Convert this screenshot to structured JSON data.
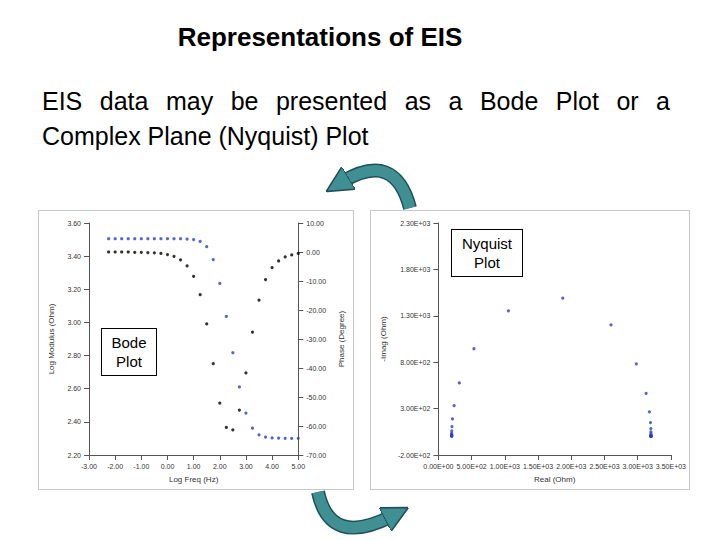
{
  "slide": {
    "title": "Representations of EIS",
    "text": "EIS data may be presented as a Bode Plot or a Complex Plane (Nyquist) Plot"
  },
  "chart_data": [
    {
      "type": "scatter",
      "annotation": "Bode Plot",
      "x_label": "Log Freq (Hz)",
      "y_label": "Log Modulus (Ohm)",
      "y2_label": "Phase (Degree)",
      "x": [
        -2.25,
        -2,
        -1.75,
        -1.5,
        -1.25,
        -1,
        -0.75,
        -0.5,
        -0.25,
        0,
        0.25,
        0.5,
        0.75,
        1,
        1.25,
        1.5,
        1.75,
        2,
        2.25,
        2.5,
        2.75,
        3,
        3.25,
        3.5,
        3.75,
        4,
        4.25,
        4.5,
        4.75,
        5
      ],
      "series": [
        {
          "color": "#2b3fc4",
          "marker": "circle",
          "values": [
            3.505,
            3.505,
            3.505,
            3.505,
            3.505,
            3.505,
            3.505,
            3.505,
            3.505,
            3.505,
            3.505,
            3.505,
            3.503,
            3.5,
            3.489,
            3.457,
            3.379,
            3.235,
            3.036,
            2.817,
            2.611,
            2.453,
            2.362,
            2.322,
            2.308,
            2.303,
            2.302,
            2.301,
            2.301,
            2.301
          ]
        },
        {
          "color": "#000000",
          "marker": "circle",
          "axis": "y2",
          "values": [
            0,
            0,
            0,
            0,
            -0.1,
            -0.1,
            -0.2,
            -0.3,
            -0.5,
            -0.9,
            -1.5,
            -2.7,
            -4.8,
            -8.4,
            -14.7,
            -24.8,
            -38.5,
            -52.1,
            -60.5,
            -61.3,
            -54.5,
            -41.7,
            -27.6,
            -16.6,
            -9.5,
            -5.4,
            -3.1,
            -1.7,
            -1,
            -0.5
          ]
        }
      ],
      "xlim": [
        -3,
        5
      ],
      "xticks": [
        {
          "value": -3,
          "label": "-3.00"
        },
        {
          "value": -2,
          "label": "-2.00"
        },
        {
          "value": -1,
          "label": "-1.00"
        },
        {
          "value": 0,
          "label": "0.00"
        },
        {
          "value": 1,
          "label": "1.00"
        },
        {
          "value": 2,
          "label": "2.00"
        },
        {
          "value": 3,
          "label": "3.00"
        },
        {
          "value": 4,
          "label": "4.00"
        },
        {
          "value": 5,
          "label": "5.00"
        }
      ],
      "ylim": [
        2.2,
        3.6
      ],
      "yticks": [
        {
          "value": 2.2,
          "label": "2.20"
        },
        {
          "value": 2.4,
          "label": "2.40"
        },
        {
          "value": 2.6,
          "label": "2.60"
        },
        {
          "value": 2.8,
          "label": "2.80"
        },
        {
          "value": 3,
          "label": "3.00"
        },
        {
          "value": 3.2,
          "label": "3.20"
        },
        {
          "value": 3.4,
          "label": "3.40"
        },
        {
          "value": 3.6,
          "label": "3.60"
        }
      ],
      "y2lim": [
        -70,
        10
      ],
      "y2ticks": [
        {
          "value": -70,
          "label": "-70.00"
        },
        {
          "value": -60,
          "label": "-60.00"
        },
        {
          "value": -50,
          "label": "-50.00"
        },
        {
          "value": -40,
          "label": "-40.00"
        },
        {
          "value": -30,
          "label": "-30.00"
        },
        {
          "value": -20,
          "label": "-20.00"
        },
        {
          "value": -10,
          "label": "-10.00"
        },
        {
          "value": 0,
          "label": "0.00"
        },
        {
          "value": 10,
          "label": "10.00"
        }
      ],
      "grid": false
    },
    {
      "type": "scatter",
      "annotation": "Nyquist Plot",
      "x_label": "Real (Ohm)",
      "y_label": "-Imag (Ohm)",
      "x": [
        3200,
        3200,
        3200,
        3200,
        3200,
        3200,
        3200,
        3200,
        3200,
        3199,
        3198,
        3193,
        3176,
        3127,
        2979,
        2598,
        1872,
        1054,
        535,
        315,
        237,
        212,
        204,
        201,
        200,
        200,
        200,
        200,
        200,
        200
      ],
      "values": [
        0.3,
        0.5,
        0.9,
        1.5,
        2.7,
        4.8,
        8.5,
        15,
        27,
        48,
        85,
        150,
        265,
        464,
        783,
        1202,
        1490,
        1354,
        945,
        576,
        332,
        189,
        106,
        60,
        34,
        19,
        11,
        6,
        3,
        2
      ],
      "color": "#2b3fc4",
      "marker": "circle",
      "xlim": [
        0,
        3500
      ],
      "xticks": [
        {
          "value": 0,
          "label": "0.00E+00"
        },
        {
          "value": 500,
          "label": "5.00E+02"
        },
        {
          "value": 1000,
          "label": "1.00E+03"
        },
        {
          "value": 1500,
          "label": "1.50E+03"
        },
        {
          "value": 2000,
          "label": "2.00E+03"
        },
        {
          "value": 2500,
          "label": "2.50E+03"
        },
        {
          "value": 3000,
          "label": "3.00E+03"
        },
        {
          "value": 3500,
          "label": "3.50E+03"
        }
      ],
      "ylim": [
        -200,
        2300
      ],
      "yticks": [
        {
          "value": -200,
          "label": "-2.00E+02"
        },
        {
          "value": 300,
          "label": "3.00E+02"
        },
        {
          "value": 800,
          "label": "8.00E+02"
        },
        {
          "value": 1300,
          "label": "1.30E+03"
        },
        {
          "value": 1800,
          "label": "1.80E+03"
        },
        {
          "value": 2300,
          "label": "2.30E+03"
        }
      ],
      "grid": false
    }
  ]
}
